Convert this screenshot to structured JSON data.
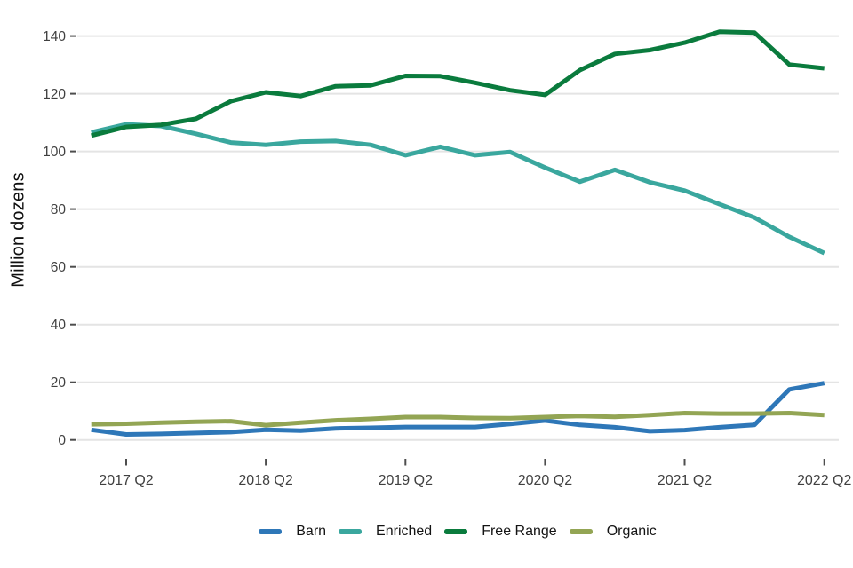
{
  "chart_data": {
    "type": "line",
    "title": "",
    "xlabel": "",
    "ylabel": "Million dozens",
    "ylim": [
      0,
      145
    ],
    "y_ticks": [
      0,
      20,
      40,
      60,
      80,
      100,
      120,
      140
    ],
    "x_tick_labels": [
      "2017 Q2",
      "2018 Q2",
      "2019 Q2",
      "2020 Q2",
      "2021 Q2",
      "2022 Q2"
    ],
    "grid": "horizontal-only",
    "legend_position": "bottom-center",
    "gridline_color": "#e4e4e4",
    "tick_color": "#4d4d4d",
    "tick_label_color": "#404040",
    "x": [
      "2017 Q1",
      "2017 Q2",
      "2017 Q3",
      "2017 Q4",
      "2018 Q1",
      "2018 Q2",
      "2018 Q3",
      "2018 Q4",
      "2019 Q1",
      "2019 Q2",
      "2019 Q3",
      "2019 Q4",
      "2020 Q1",
      "2020 Q2",
      "2020 Q3",
      "2020 Q4",
      "2021 Q1",
      "2021 Q2",
      "2021 Q3",
      "2021 Q4",
      "2022 Q1",
      "2022 Q2"
    ],
    "series": [
      {
        "name": "Barn",
        "color": "#2e77b8",
        "values": [
          3.5,
          1.9,
          2.1,
          2.4,
          2.7,
          3.5,
          3.2,
          4.0,
          4.2,
          4.5,
          4.5,
          4.5,
          5.5,
          6.7,
          5.2,
          4.4,
          3.0,
          3.4,
          4.4,
          5.2,
          17.5,
          19.7
        ]
      },
      {
        "name": "Enriched",
        "color": "#3aa79e",
        "values": [
          106.6,
          109.4,
          108.8,
          106.1,
          103.1,
          102.3,
          103.4,
          103.6,
          102.3,
          98.7,
          101.6,
          98.7,
          99.8,
          94.4,
          89.5,
          93.6,
          89.3,
          86.4,
          81.7,
          77.1,
          70.4,
          64.8
        ]
      },
      {
        "name": "Free Range",
        "color": "#0a7b3d",
        "values": [
          105.5,
          108.5,
          109.2,
          111.3,
          117.4,
          120.5,
          119.2,
          122.6,
          122.9,
          126.2,
          126.1,
          123.8,
          121.2,
          119.6,
          128.2,
          133.8,
          135.1,
          137.7,
          141.5,
          141.2,
          130.1,
          128.8
        ]
      },
      {
        "name": "Organic",
        "color": "#93a554",
        "values": [
          5.4,
          5.6,
          6.0,
          6.3,
          6.5,
          5.1,
          6.0,
          6.8,
          7.3,
          7.9,
          7.9,
          7.6,
          7.5,
          7.9,
          8.3,
          8.0,
          8.6,
          9.3,
          9.1,
          9.1,
          9.3,
          8.6
        ]
      }
    ]
  }
}
